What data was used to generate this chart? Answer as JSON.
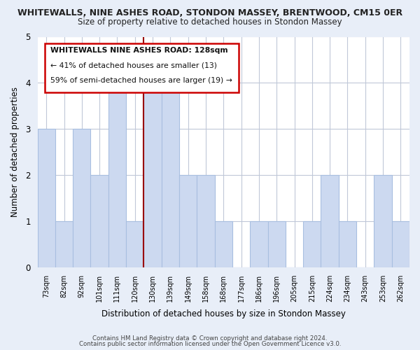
{
  "title": "WHITEWALLS, NINE ASHES ROAD, STONDON MASSEY, BRENTWOOD, CM15 0ER",
  "subtitle": "Size of property relative to detached houses in Stondon Massey",
  "xlabel": "Distribution of detached houses by size in Stondon Massey",
  "ylabel": "Number of detached properties",
  "categories": [
    "73sqm",
    "82sqm",
    "92sqm",
    "101sqm",
    "111sqm",
    "120sqm",
    "130sqm",
    "139sqm",
    "149sqm",
    "158sqm",
    "168sqm",
    "177sqm",
    "186sqm",
    "196sqm",
    "205sqm",
    "215sqm",
    "224sqm",
    "234sqm",
    "243sqm",
    "253sqm",
    "262sqm"
  ],
  "values": [
    3,
    1,
    3,
    2,
    4,
    1,
    4,
    4,
    2,
    2,
    1,
    0,
    1,
    1,
    0,
    1,
    2,
    1,
    0,
    2,
    1
  ],
  "bar_color": "#ccd9f0",
  "bar_edge_color": "#a8bfe0",
  "highlight_line_color": "#990000",
  "highlight_box_color": "#cc0000",
  "highlight_index": 6,
  "annotation_title": "WHITEWALLS NINE ASHES ROAD: 128sqm",
  "annotation_line1": "← 41% of detached houses are smaller (13)",
  "annotation_line2": "59% of semi-detached houses are larger (19) →",
  "ylim": [
    0,
    5
  ],
  "yticks": [
    0,
    1,
    2,
    3,
    4,
    5
  ],
  "footer1": "Contains HM Land Registry data © Crown copyright and database right 2024.",
  "footer2": "Contains public sector information licensed under the Open Government Licence v3.0.",
  "bg_color": "#e8eef8",
  "plot_bg_color": "#ffffff"
}
